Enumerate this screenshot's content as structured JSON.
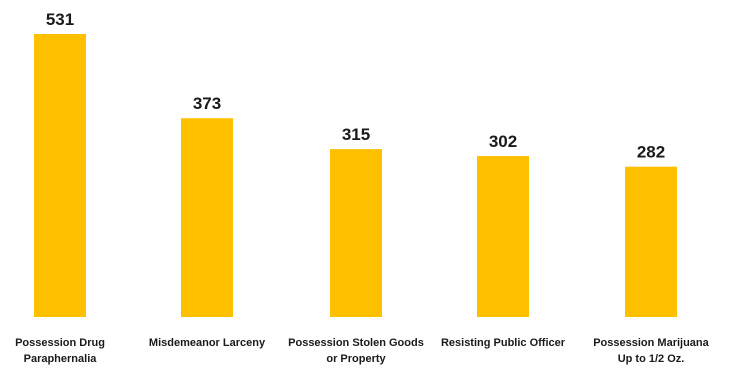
{
  "chart_data": {
    "type": "bar",
    "title": "",
    "xlabel": "",
    "ylabel": "",
    "categories": [
      [
        "Possession Drug",
        "Paraphernalia"
      ],
      [
        "Misdemeanor Larceny"
      ],
      [
        "Possession Stolen Goods",
        "or Property"
      ],
      [
        "Resisting Public Officer"
      ],
      [
        "Possession Marijuana",
        "Up to 1/2 Oz."
      ]
    ],
    "values": [
      531,
      373,
      315,
      302,
      282
    ],
    "value_labels": [
      "531",
      "373",
      "315",
      "302",
      "282"
    ],
    "ylim": [
      0,
      531
    ],
    "grid": false,
    "legend": "none",
    "bar_color": "#FFC000"
  }
}
